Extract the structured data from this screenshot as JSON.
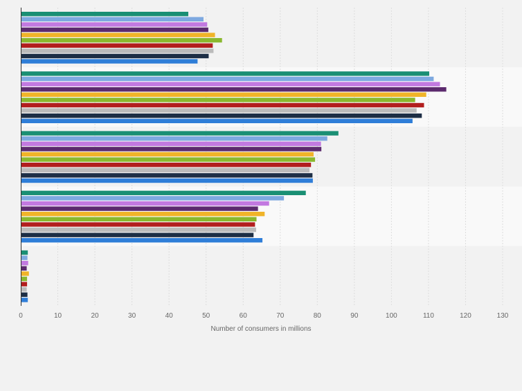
{
  "chart_data": {
    "type": "bar",
    "orientation": "horizontal",
    "xlabel": "Number of consumers in millions",
    "xlim": [
      0,
      130
    ],
    "x_ticks": [
      "0",
      "10",
      "20",
      "30",
      "40",
      "50",
      "60",
      "70",
      "80",
      "90",
      "100",
      "110",
      "120",
      "130"
    ],
    "grid": "vertical, dashed",
    "legend": "none",
    "groups": [
      {
        "values": [
          45.2,
          49.3,
          50.3,
          50.6,
          52.4,
          54.3,
          51.8,
          52.0,
          50.7,
          47.7
        ]
      },
      {
        "values": [
          110.2,
          111.4,
          113.1,
          114.8,
          109.4,
          106.4,
          108.8,
          106.8,
          108.2,
          105.7
        ]
      },
      {
        "values": [
          85.7,
          82.7,
          81.0,
          81.1,
          79.0,
          79.4,
          78.3,
          77.9,
          78.7,
          78.8
        ]
      },
      {
        "values": [
          76.9,
          71.0,
          67.0,
          64.0,
          65.8,
          63.6,
          63.2,
          63.5,
          62.8,
          65.2
        ]
      },
      {
        "values": [
          1.9,
          1.8,
          2.0,
          1.6,
          2.2,
          1.7,
          1.7,
          1.6,
          1.8,
          1.9
        ]
      }
    ],
    "series_colors": [
      "#1a8f74",
      "#7ea9e0",
      "#c279e0",
      "#5c2a6e",
      "#f0b429",
      "#8ab82e",
      "#b21e1e",
      "#bbbbbb",
      "#1d2e45",
      "#2f7ed8"
    ],
    "band_colors": [
      "#f2f2f2",
      "#f9f9f9"
    ],
    "grid_color": "#dddddd",
    "axis_color": "#333333",
    "text_color": "#666666"
  }
}
